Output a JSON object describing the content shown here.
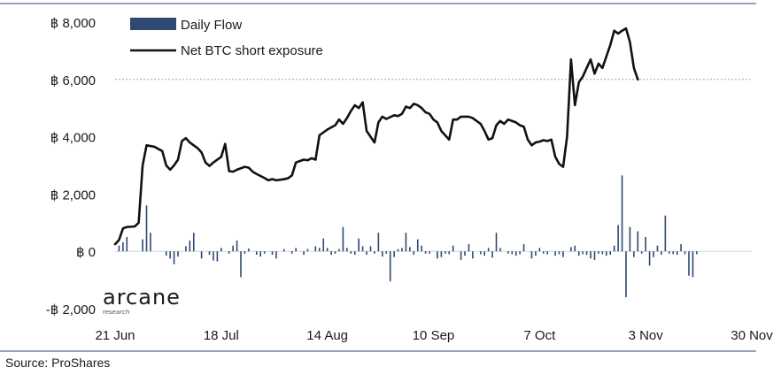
{
  "chart_data": {
    "type": "bar+line",
    "title": "",
    "xlabel": "",
    "ylabel": "",
    "ylim": [
      -2000,
      8000
    ],
    "y_ticks": [
      {
        "value": 8000,
        "label": "฿ 8,000"
      },
      {
        "value": 6000,
        "label": "฿ 6,000"
      },
      {
        "value": 4000,
        "label": "฿ 4,000"
      },
      {
        "value": 2000,
        "label": "฿ 2,000"
      },
      {
        "value": 0,
        "label": "฿ 0"
      },
      {
        "value": -2000,
        "label": "-฿ 2,000"
      }
    ],
    "x_ticks": [
      {
        "day": 0,
        "label": "21 Jun"
      },
      {
        "day": 27,
        "label": "18 Jul"
      },
      {
        "day": 54,
        "label": "14 Aug"
      },
      {
        "day": 81,
        "label": "10 Sep"
      },
      {
        "day": 108,
        "label": "7 Oct"
      },
      {
        "day": 135,
        "label": "3 Nov"
      },
      {
        "day": 162,
        "label": "30 Nov"
      }
    ],
    "reference_line": {
      "value": 6000,
      "style": "dotted"
    },
    "legend": {
      "placement": "top-left"
    },
    "series": [
      {
        "name": "Daily Flow",
        "type": "bar",
        "color": "#2e4a72",
        "points": [
          [
            1,
            200
          ],
          [
            2,
            320
          ],
          [
            3,
            500
          ],
          [
            7,
            420
          ],
          [
            8,
            1600
          ],
          [
            9,
            650
          ],
          [
            13,
            -150
          ],
          [
            14,
            -250
          ],
          [
            15,
            -450
          ],
          [
            16,
            -180
          ],
          [
            18,
            180
          ],
          [
            19,
            380
          ],
          [
            20,
            650
          ],
          [
            22,
            -250
          ],
          [
            24,
            -120
          ],
          [
            25,
            -320
          ],
          [
            26,
            -350
          ],
          [
            27,
            120
          ],
          [
            29,
            -80
          ],
          [
            30,
            200
          ],
          [
            31,
            380
          ],
          [
            32,
            -900
          ],
          [
            33,
            -80
          ],
          [
            34,
            100
          ],
          [
            36,
            -120
          ],
          [
            37,
            -180
          ],
          [
            38,
            -80
          ],
          [
            40,
            -120
          ],
          [
            41,
            -250
          ],
          [
            43,
            80
          ],
          [
            45,
            -80
          ],
          [
            46,
            120
          ],
          [
            48,
            -120
          ],
          [
            49,
            80
          ],
          [
            51,
            180
          ],
          [
            52,
            120
          ],
          [
            53,
            450
          ],
          [
            54,
            120
          ],
          [
            55,
            -120
          ],
          [
            56,
            -80
          ],
          [
            57,
            80
          ],
          [
            58,
            850
          ],
          [
            59,
            120
          ],
          [
            60,
            -80
          ],
          [
            61,
            -120
          ],
          [
            62,
            450
          ],
          [
            63,
            180
          ],
          [
            64,
            -120
          ],
          [
            65,
            180
          ],
          [
            66,
            -80
          ],
          [
            67,
            650
          ],
          [
            68,
            -180
          ],
          [
            69,
            -80
          ],
          [
            70,
            -1050
          ],
          [
            71,
            -200
          ],
          [
            72,
            80
          ],
          [
            73,
            120
          ],
          [
            74,
            650
          ],
          [
            75,
            150
          ],
          [
            76,
            -120
          ],
          [
            77,
            420
          ],
          [
            78,
            200
          ],
          [
            79,
            -80
          ],
          [
            80,
            -80
          ],
          [
            82,
            -250
          ],
          [
            83,
            -200
          ],
          [
            84,
            -80
          ],
          [
            85,
            -100
          ],
          [
            86,
            200
          ],
          [
            88,
            -300
          ],
          [
            89,
            -150
          ],
          [
            90,
            250
          ],
          [
            91,
            -250
          ],
          [
            93,
            -100
          ],
          [
            94,
            -150
          ],
          [
            95,
            120
          ],
          [
            96,
            -220
          ],
          [
            97,
            650
          ],
          [
            98,
            120
          ],
          [
            100,
            -80
          ],
          [
            101,
            -100
          ],
          [
            102,
            -150
          ],
          [
            103,
            -100
          ],
          [
            104,
            250
          ],
          [
            106,
            -250
          ],
          [
            107,
            -150
          ],
          [
            108,
            120
          ],
          [
            109,
            -80
          ],
          [
            110,
            -100
          ],
          [
            112,
            -150
          ],
          [
            113,
            -100
          ],
          [
            114,
            -200
          ],
          [
            116,
            150
          ],
          [
            117,
            200
          ],
          [
            118,
            -150
          ],
          [
            119,
            -100
          ],
          [
            120,
            -120
          ],
          [
            121,
            -250
          ],
          [
            122,
            -300
          ],
          [
            123,
            -80
          ],
          [
            124,
            -100
          ],
          [
            125,
            -150
          ],
          [
            126,
            -120
          ],
          [
            127,
            200
          ],
          [
            128,
            920
          ],
          [
            129,
            2650
          ],
          [
            130,
            -1600
          ],
          [
            131,
            850
          ],
          [
            132,
            -200
          ],
          [
            133,
            700
          ],
          [
            134,
            -80
          ],
          [
            135,
            500
          ],
          [
            136,
            -500
          ],
          [
            137,
            -200
          ],
          [
            138,
            200
          ],
          [
            139,
            -120
          ],
          [
            140,
            1250
          ],
          [
            141,
            -80
          ],
          [
            142,
            -100
          ],
          [
            143,
            -120
          ],
          [
            144,
            250
          ],
          [
            145,
            -100
          ],
          [
            146,
            -850
          ],
          [
            147,
            -900
          ],
          [
            148,
            -100
          ]
        ]
      },
      {
        "name": "Net BTC short exposure",
        "type": "line",
        "color": "#111111",
        "points": [
          [
            0,
            250
          ],
          [
            1,
            400
          ],
          [
            2,
            800
          ],
          [
            3,
            850
          ],
          [
            5,
            870
          ],
          [
            6,
            1000
          ],
          [
            7,
            3000
          ],
          [
            8,
            3700
          ],
          [
            10,
            3650
          ],
          [
            12,
            3500
          ],
          [
            13,
            3000
          ],
          [
            14,
            2850
          ],
          [
            15,
            3000
          ],
          [
            16,
            3200
          ],
          [
            17,
            3850
          ],
          [
            18,
            3950
          ],
          [
            19,
            3800
          ],
          [
            21,
            3600
          ],
          [
            22,
            3450
          ],
          [
            23,
            3100
          ],
          [
            24,
            2980
          ],
          [
            25,
            3100
          ],
          [
            27,
            3300
          ],
          [
            28,
            3750
          ],
          [
            29,
            2800
          ],
          [
            30,
            2780
          ],
          [
            31,
            2850
          ],
          [
            33,
            2950
          ],
          [
            34,
            2920
          ],
          [
            35,
            2780
          ],
          [
            36,
            2700
          ],
          [
            38,
            2560
          ],
          [
            39,
            2480
          ],
          [
            40,
            2520
          ],
          [
            41,
            2480
          ],
          [
            43,
            2520
          ],
          [
            44,
            2550
          ],
          [
            45,
            2650
          ],
          [
            46,
            3100
          ],
          [
            47,
            3150
          ],
          [
            48,
            3200
          ],
          [
            49,
            3180
          ],
          [
            50,
            3250
          ],
          [
            51,
            3200
          ],
          [
            52,
            4050
          ],
          [
            53,
            4150
          ],
          [
            54,
            4250
          ],
          [
            56,
            4400
          ],
          [
            57,
            4600
          ],
          [
            58,
            4450
          ],
          [
            59,
            4650
          ],
          [
            60,
            4900
          ],
          [
            61,
            5100
          ],
          [
            62,
            5000
          ],
          [
            63,
            5200
          ],
          [
            64,
            4200
          ],
          [
            65,
            4000
          ],
          [
            66,
            3800
          ],
          [
            67,
            4500
          ],
          [
            68,
            4700
          ],
          [
            69,
            4620
          ],
          [
            71,
            4750
          ],
          [
            72,
            4720
          ],
          [
            73,
            4800
          ],
          [
            74,
            5050
          ],
          [
            75,
            5000
          ],
          [
            76,
            5150
          ],
          [
            77,
            5100
          ],
          [
            78,
            5000
          ],
          [
            79,
            4850
          ],
          [
            80,
            4800
          ],
          [
            81,
            4600
          ],
          [
            82,
            4500
          ],
          [
            83,
            4200
          ],
          [
            84,
            4050
          ],
          [
            85,
            3900
          ],
          [
            86,
            4600
          ],
          [
            87,
            4600
          ],
          [
            88,
            4700
          ],
          [
            90,
            4700
          ],
          [
            91,
            4650
          ],
          [
            92,
            4550
          ],
          [
            93,
            4450
          ],
          [
            94,
            4200
          ],
          [
            95,
            3900
          ],
          [
            96,
            3950
          ],
          [
            97,
            4400
          ],
          [
            98,
            4550
          ],
          [
            99,
            4450
          ],
          [
            100,
            4600
          ],
          [
            101,
            4550
          ],
          [
            102,
            4500
          ],
          [
            103,
            4400
          ],
          [
            104,
            4350
          ],
          [
            105,
            3900
          ],
          [
            106,
            3700
          ],
          [
            107,
            3800
          ],
          [
            108,
            3830
          ],
          [
            109,
            3880
          ],
          [
            110,
            3850
          ],
          [
            111,
            3900
          ],
          [
            112,
            3300
          ],
          [
            113,
            3050
          ],
          [
            114,
            2950
          ],
          [
            115,
            4000
          ],
          [
            116,
            6700
          ],
          [
            117,
            5100
          ],
          [
            118,
            5900
          ],
          [
            119,
            6100
          ],
          [
            120,
            6400
          ],
          [
            121,
            6700
          ],
          [
            122,
            6200
          ],
          [
            123,
            6550
          ],
          [
            124,
            6400
          ],
          [
            125,
            6800
          ],
          [
            126,
            7200
          ],
          [
            127,
            7700
          ],
          [
            128,
            7600
          ],
          [
            129,
            7700
          ],
          [
            130,
            7780
          ],
          [
            131,
            7300
          ],
          [
            132,
            6400
          ],
          [
            133,
            6000
          ]
        ]
      }
    ]
  },
  "logo": {
    "name": "arcane",
    "sub": "research"
  },
  "footer": {
    "source": "Source: ProShares"
  }
}
